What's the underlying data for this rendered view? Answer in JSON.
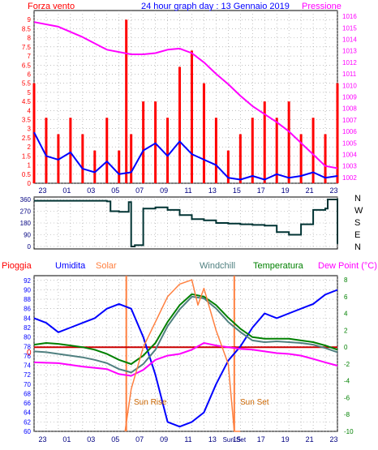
{
  "chart_data": [
    {
      "type": "line",
      "title": "24 hour graph day : 13 Gennaio 2019",
      "left_axis_label": "Forza vento",
      "right_axis_label": "Pressione",
      "left_ticks": [
        "0",
        "0.5",
        "1",
        "1.5",
        "2",
        "2.5",
        "3",
        "3.5",
        "4",
        "4.5",
        "5",
        "5.5",
        "6",
        "6.5",
        "7",
        "7.5",
        "8",
        "8.5",
        "9"
      ],
      "right_ticks": [
        "1002",
        "1003",
        "1004",
        "1005",
        "1006",
        "1007",
        "1008",
        "1009",
        "1010",
        "1011",
        "1012",
        "1013",
        "1014",
        "1015",
        "1016"
      ],
      "ylim_left": [
        0,
        9.5
      ],
      "ylim_right": [
        1001.5,
        1016.5
      ],
      "x_ticks": [
        "23",
        "01",
        "03",
        "05",
        "07",
        "09",
        "11",
        "13",
        "15",
        "17",
        "19",
        "21",
        "23"
      ],
      "grid": true,
      "series": [
        {
          "name": "Pressione",
          "color": "#ff00ff",
          "x": [
            0,
            2,
            4,
            6,
            8,
            9,
            10,
            11,
            12,
            13,
            14,
            15,
            16,
            17,
            18,
            19,
            20,
            21,
            22,
            23,
            24,
            25
          ],
          "values": [
            1015.5,
            1015.1,
            1014.2,
            1013.1,
            1012.7,
            1012.7,
            1012.8,
            1013.1,
            1013.2,
            1012.8,
            1012.0,
            1011.0,
            1010.1,
            1009.1,
            1008.2,
            1007.5,
            1006.8,
            1006.0,
            1005.0,
            1004.0,
            1003.0,
            1002.8
          ]
        },
        {
          "name": "wind mean",
          "color": "#0000ff",
          "x": [
            0,
            1,
            2,
            3,
            4,
            5,
            6,
            7,
            8,
            9,
            10,
            11,
            12,
            13,
            14,
            15,
            16,
            17,
            18,
            19,
            20,
            21,
            22,
            23,
            24,
            25
          ],
          "values": [
            2.8,
            1.5,
            1.3,
            1.7,
            0.8,
            0.6,
            1.2,
            0.5,
            0.6,
            1.8,
            2.2,
            1.5,
            2.3,
            1.6,
            1.3,
            1.0,
            0.3,
            0.2,
            0.4,
            0.2,
            0.5,
            0.3,
            0.4,
            0.6,
            0.3,
            0.4
          ]
        },
        {
          "name": "wind gust",
          "color": "#ff0000",
          "x": [
            0,
            1,
            2,
            3,
            4,
            5,
            6,
            7,
            7.6,
            8,
            9,
            10,
            11,
            12,
            13,
            14,
            15,
            16,
            17,
            18,
            19,
            20,
            21,
            22,
            23,
            24,
            25
          ],
          "values": [
            5.5,
            3.6,
            2.7,
            3.6,
            2.7,
            1.8,
            3.6,
            1.8,
            9.0,
            2.7,
            4.5,
            4.5,
            3.6,
            6.4,
            7.3,
            5.5,
            3.6,
            1.8,
            2.7,
            3.6,
            4.5,
            3.6,
            4.5,
            2.7,
            3.6,
            2.7,
            5.5
          ]
        }
      ]
    },
    {
      "type": "line",
      "right_ticks_label": [
        "N",
        "W",
        "S",
        "E",
        "N"
      ],
      "left_ticks": [
        "0",
        "90",
        "180",
        "270",
        "360"
      ],
      "ylim": [
        0,
        360
      ],
      "x_ticks": [
        "23",
        "01",
        "03",
        "05",
        "07",
        "09",
        "11",
        "13",
        "15",
        "17",
        "19",
        "21",
        "23"
      ],
      "series": [
        {
          "name": "direction",
          "color": "#003333",
          "x": [
            0,
            6,
            6.3,
            7,
            7.8,
            8.0,
            8.3,
            9,
            10,
            11,
            12,
            13,
            14,
            15,
            16,
            17,
            18,
            19,
            20,
            21,
            22,
            23,
            24,
            24.2,
            25
          ],
          "values": [
            350,
            345,
            270,
            265,
            340,
            0,
            10,
            290,
            300,
            280,
            240,
            210,
            200,
            180,
            175,
            170,
            165,
            160,
            110,
            90,
            170,
            280,
            290,
            360,
            20
          ]
        }
      ]
    },
    {
      "type": "line",
      "labels": {
        "pioggia": "Pioggia",
        "umidita": "Umidita",
        "solar": "Solar",
        "windchill": "Windchill",
        "temperatura": "Temperatura",
        "dewpoint": "Dew Point (°C)",
        "sunrise": "Sun Rise",
        "sunset": "Sun Set",
        "sunset_axis": "Sun Set",
        "zero": "0"
      },
      "left_ticks": [
        "60",
        "62",
        "64",
        "66",
        "68",
        "70",
        "72",
        "74",
        "76",
        "78",
        "80",
        "82",
        "84",
        "86",
        "88",
        "90",
        "92"
      ],
      "right_ticks": [
        "-10",
        "-8",
        "-6",
        "-4",
        "-2",
        "0",
        "2",
        "4",
        "6",
        "8"
      ],
      "ylim_left": [
        60,
        93
      ],
      "ylim_right": [
        -10,
        8.5
      ],
      "x_ticks": [
        "23",
        "01",
        "03",
        "05",
        "07",
        "09",
        "11",
        "13",
        "15",
        "17",
        "19",
        "21",
        "23"
      ],
      "series": [
        {
          "name": "Umidita",
          "color": "#0000ff",
          "x": [
            0,
            1,
            2,
            3,
            4,
            5,
            6,
            7,
            8,
            9,
            10,
            11,
            12,
            13,
            14,
            15,
            16,
            17,
            18,
            19,
            20,
            21,
            22,
            23,
            24,
            25
          ],
          "values": [
            84,
            83,
            81,
            82,
            83,
            84,
            86,
            87,
            86,
            80,
            72,
            62,
            61,
            62,
            64,
            70,
            75,
            78,
            82,
            85,
            84,
            85,
            86,
            87,
            89,
            90
          ]
        },
        {
          "name": "Temperatura",
          "color": "#008000",
          "x": [
            0,
            1,
            2,
            3,
            4,
            5,
            6,
            7,
            8,
            9,
            10,
            11,
            12,
            13,
            14,
            15,
            16,
            17,
            18,
            19,
            20,
            21,
            22,
            23,
            24,
            25
          ],
          "values": [
            0.3,
            0.5,
            0.4,
            0.2,
            0.0,
            -0.3,
            -0.8,
            -1.5,
            -2.0,
            -1.0,
            0.5,
            3.0,
            5.0,
            6.3,
            6.0,
            5.0,
            3.5,
            2.2,
            1.2,
            1.0,
            1.0,
            1.0,
            0.8,
            0.6,
            0.2,
            -0.3
          ]
        },
        {
          "name": "Windchill",
          "color": "#508080",
          "x": [
            0,
            1,
            2,
            3,
            4,
            5,
            6,
            7,
            8,
            9,
            10,
            11,
            12,
            13,
            14,
            15,
            16,
            17,
            18,
            19,
            20,
            21,
            22,
            23,
            24,
            25
          ],
          "values": [
            -0.5,
            -0.6,
            -0.8,
            -1.0,
            -1.2,
            -1.5,
            -1.9,
            -2.6,
            -3.0,
            -2.0,
            -0.3,
            2.5,
            4.5,
            6.0,
            5.8,
            4.6,
            3.0,
            1.8,
            0.8,
            0.6,
            0.7,
            0.6,
            0.5,
            0.3,
            -0.1,
            -0.6
          ]
        },
        {
          "name": "Dew Point (°C)",
          "color": "#ff00ff",
          "x": [
            0,
            2,
            4,
            6,
            7,
            8,
            9,
            10,
            11,
            12,
            13,
            14,
            15,
            16,
            17,
            18,
            19,
            20,
            21,
            22,
            23,
            24,
            25
          ],
          "values": [
            -1.8,
            -1.9,
            -2.3,
            -2.6,
            -3.2,
            -3.4,
            -2.7,
            -1.5,
            -1.0,
            -0.8,
            -0.3,
            0.5,
            0.2,
            0.0,
            -0.2,
            -0.3,
            -0.5,
            -0.7,
            -0.8,
            -1.0,
            -1.4,
            -1.8,
            -2.2
          ]
        },
        {
          "name": "Solar",
          "color": "#ff8040",
          "x": [
            7.5,
            8,
            9,
            10,
            11,
            12,
            13,
            13.5,
            14,
            15,
            16,
            16.5,
            17
          ],
          "values": [
            -10,
            -5,
            0,
            3,
            6,
            7.5,
            8,
            5,
            7,
            2,
            -2,
            -10,
            -10
          ]
        }
      ],
      "markers": {
        "sunrise_x": 7.6,
        "sunset_x": 16.5
      }
    }
  ]
}
